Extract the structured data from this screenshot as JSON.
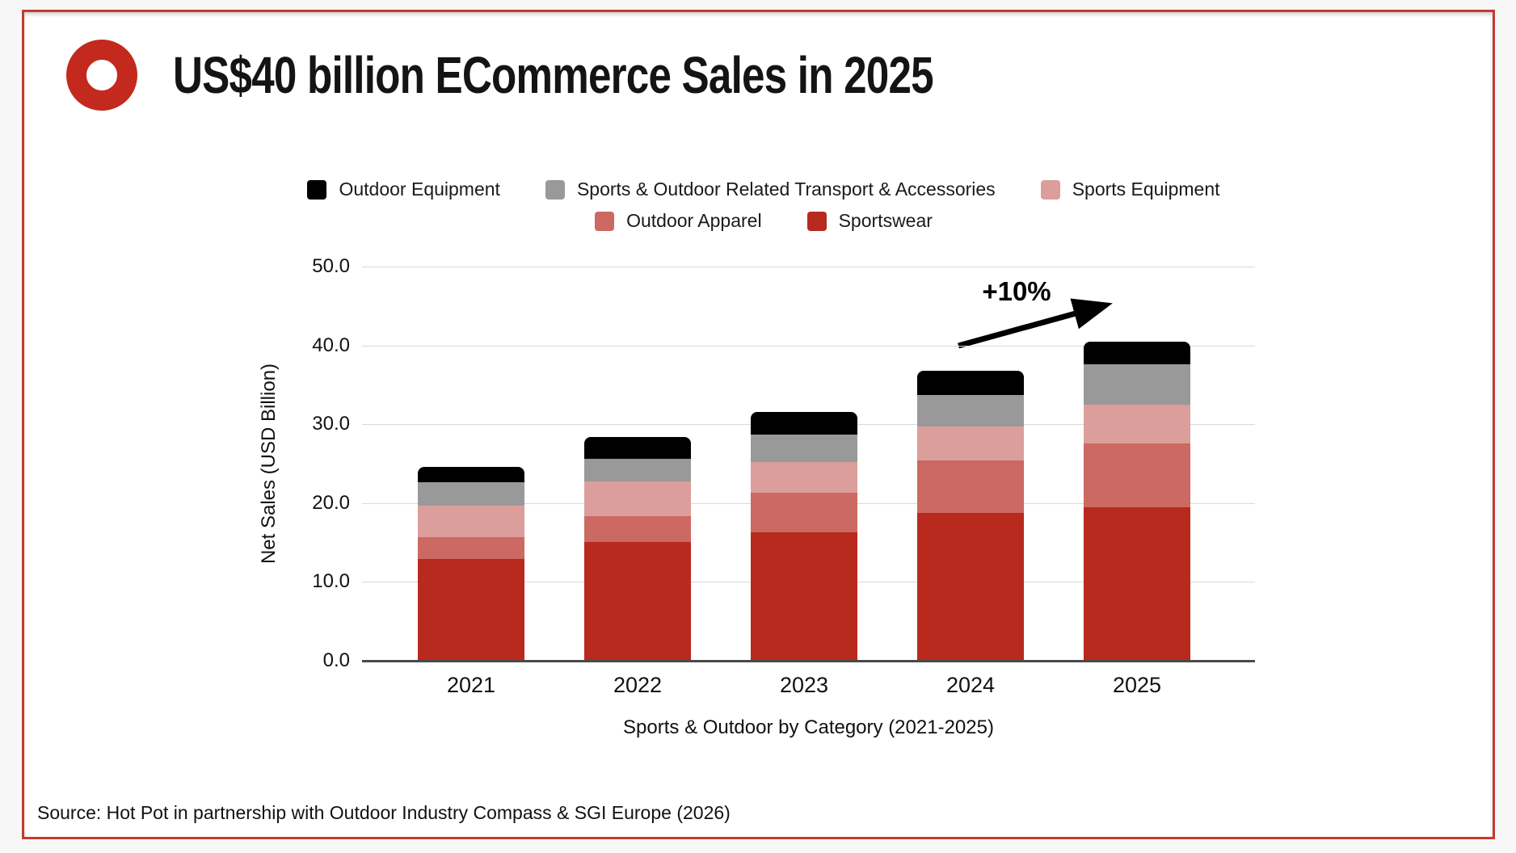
{
  "header": {
    "title": "US$40 billion ECommerce Sales in 2025"
  },
  "source": "Source: Hot Pot in partnership with Outdoor Industry Compass & SGI Europe (2026)",
  "colors": {
    "brand_red": "#c4291d",
    "card_border": "#c43a2d",
    "gridline": "#d9d9d9",
    "axis": "#4a4a4a"
  },
  "legend": {
    "rows": [
      [
        "Outdoor Equipment",
        "Sports & Outdoor Related Transport & Accessories",
        "Sports Equipment"
      ],
      [
        "Outdoor Apparel",
        "Sportswear"
      ]
    ]
  },
  "chart_data": {
    "type": "bar",
    "stacked": true,
    "title": "US$40 billion ECommerce Sales in 2025",
    "xlabel": "Sports & Outdoor by Category (2021-2025)",
    "ylabel": "Net Sales (USD Billion)",
    "categories": [
      "2021",
      "2022",
      "2023",
      "2024",
      "2025"
    ],
    "series": [
      {
        "name": "Sportswear",
        "color": "#b8291e",
        "values": [
          12.8,
          15.0,
          16.2,
          18.7,
          19.4
        ]
      },
      {
        "name": "Outdoor Apparel",
        "color": "#cc6962",
        "values": [
          2.8,
          3.2,
          5.0,
          6.6,
          8.1
        ]
      },
      {
        "name": "Sports Equipment",
        "color": "#dc9e9b",
        "values": [
          4.0,
          4.4,
          3.9,
          4.3,
          4.9
        ]
      },
      {
        "name": "Sports & Outdoor Related Transport & Accessories",
        "color": "#999999",
        "values": [
          2.9,
          2.9,
          3.5,
          4.0,
          5.1
        ]
      },
      {
        "name": "Outdoor Equipment",
        "color": "#000000",
        "values": [
          2.0,
          2.8,
          2.9,
          3.1,
          2.9
        ]
      }
    ],
    "totals": [
      24.5,
      28.3,
      31.5,
      36.7,
      40.4
    ],
    "ylim": [
      0,
      50
    ],
    "yticks": [
      0,
      10,
      20,
      30,
      40,
      50
    ],
    "ytick_labels": [
      "0.0",
      "10.0",
      "20.0",
      "30.0",
      "40.0",
      "50.0"
    ],
    "grid": true,
    "legend_position": "top",
    "annotation": {
      "label": "+10%",
      "note": "growth from 2024 to 2025"
    }
  }
}
